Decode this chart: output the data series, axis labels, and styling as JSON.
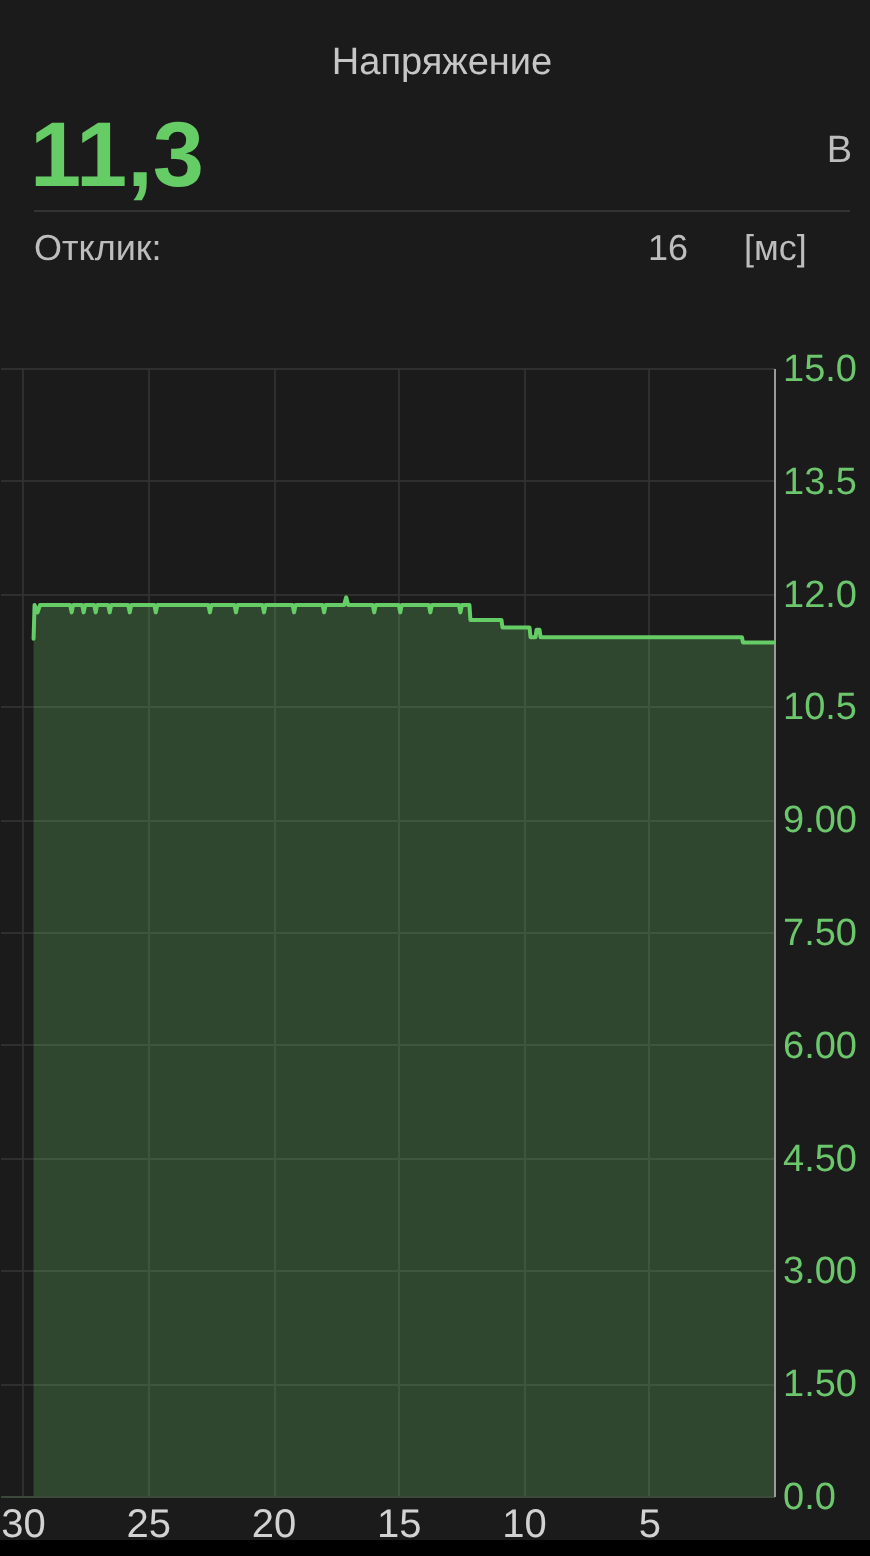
{
  "chart_data": {
    "type": "area",
    "title": "Напряжение",
    "annotations": [
      "11,3",
      "В",
      "Отклик:",
      "16",
      "[мс]"
    ],
    "x": [
      29.56,
      29.52,
      29.4,
      29.3,
      28.1,
      28.04,
      27.98,
      27.62,
      27.56,
      27.5,
      27.14,
      27.08,
      27.02,
      26.58,
      26.52,
      26.46,
      25.78,
      25.72,
      25.66,
      24.74,
      24.68,
      24.62,
      22.58,
      22.52,
      22.46,
      21.54,
      21.48,
      21.42,
      20.42,
      20.36,
      20.3,
      19.22,
      19.16,
      19.1,
      18.02,
      17.96,
      17.9,
      17.16,
      17.08,
      17.0,
      16.02,
      15.96,
      15.9,
      14.98,
      14.92,
      14.86,
      13.78,
      13.72,
      13.66,
      12.58,
      12.52,
      12.46,
      12.16,
      12.12,
      10.88,
      10.84,
      9.76,
      9.72,
      9.52,
      9.48,
      9.36,
      9.32,
      1.28,
      1.24,
      0
    ],
    "series": [
      {
        "color": "#66cc66",
        "values": [
          11.4,
          11.85,
          11.75,
          11.85,
          11.85,
          11.75,
          11.85,
          11.85,
          11.75,
          11.85,
          11.85,
          11.75,
          11.85,
          11.85,
          11.75,
          11.85,
          11.85,
          11.75,
          11.85,
          11.85,
          11.75,
          11.85,
          11.85,
          11.75,
          11.85,
          11.85,
          11.75,
          11.85,
          11.85,
          11.75,
          11.85,
          11.85,
          11.75,
          11.85,
          11.85,
          11.75,
          11.85,
          11.85,
          11.95,
          11.85,
          11.85,
          11.75,
          11.85,
          11.85,
          11.75,
          11.85,
          11.85,
          11.75,
          11.85,
          11.85,
          11.75,
          11.85,
          11.85,
          11.65,
          11.65,
          11.55,
          11.55,
          11.42,
          11.42,
          11.52,
          11.52,
          11.42,
          11.42,
          11.35,
          11.35
        ]
      }
    ],
    "xlim": [
      30.9,
      0
    ],
    "xticks": [
      30,
      25,
      20,
      15,
      10,
      5
    ],
    "ylim": [
      0,
      15
    ],
    "yticks": [
      {
        "value": 0,
        "label": "0.0"
      },
      {
        "value": 1.5,
        "label": "1.50"
      },
      {
        "value": 3,
        "label": "3.00"
      },
      {
        "value": 4.5,
        "label": "4.50"
      },
      {
        "value": 6,
        "label": "6.00"
      },
      {
        "value": 7.5,
        "label": "7.50"
      },
      {
        "value": 9,
        "label": "9.00"
      },
      {
        "value": 10.5,
        "label": "10.5"
      },
      {
        "value": 12,
        "label": "12.0"
      },
      {
        "value": 13.5,
        "label": "13.5"
      },
      {
        "value": 15,
        "label": "15.0"
      }
    ],
    "grid": true
  }
}
